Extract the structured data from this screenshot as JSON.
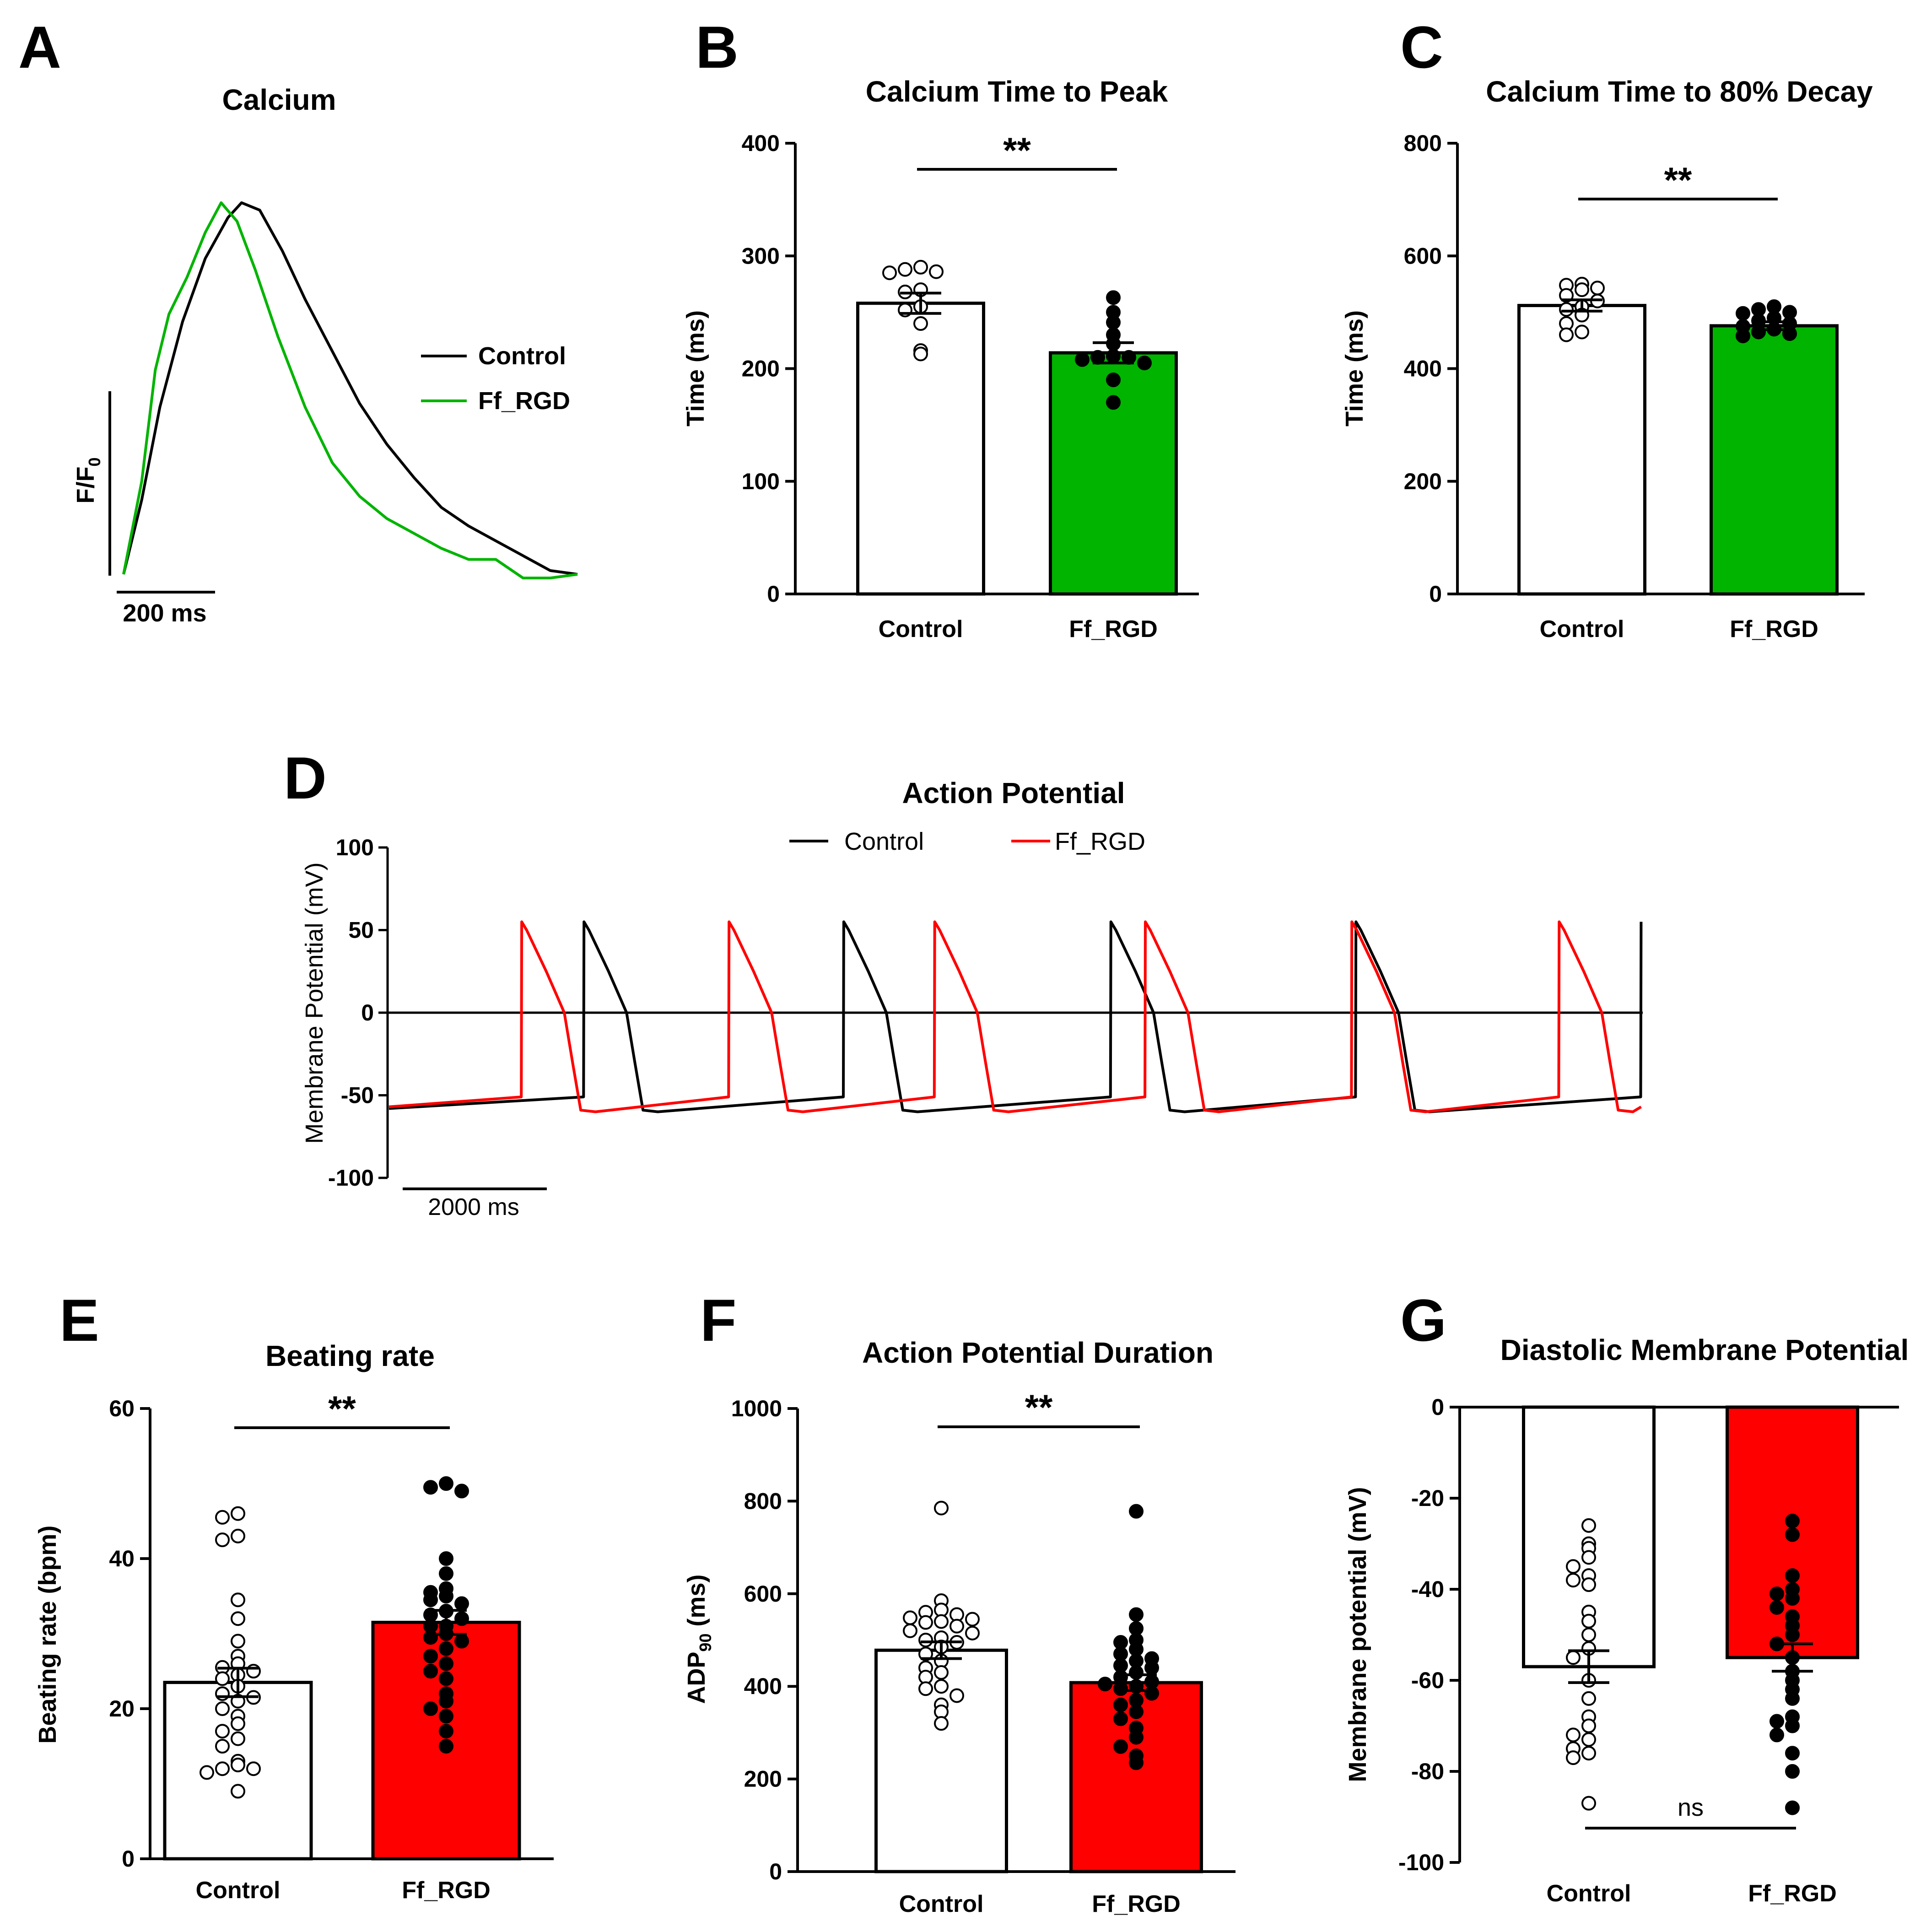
{
  "colors": {
    "control": "#000000",
    "green": "#00b400",
    "red": "#ff0000",
    "bar_control": "#ffffff"
  },
  "panel_letters": [
    "A",
    "B",
    "C",
    "D",
    "E",
    "F",
    "G"
  ],
  "chart_data": [
    {
      "id": "A",
      "type": "line",
      "title": "Calcium",
      "ylabel": "F/F0",
      "scale_bar": "200 ms",
      "legend": [
        {
          "name": "Control",
          "color": "#000000"
        },
        {
          "name": "Ff_RGD",
          "color": "#00b400"
        }
      ],
      "series": [
        {
          "name": "Control",
          "t_ms": [
            0,
            40,
            80,
            130,
            180,
            230,
            260,
            300,
            350,
            400,
            460,
            520,
            580,
            640,
            700,
            760,
            820,
            880,
            940,
            1000
          ],
          "y": [
            0,
            0.2,
            0.45,
            0.68,
            0.85,
            0.96,
            1.0,
            0.98,
            0.87,
            0.74,
            0.6,
            0.46,
            0.35,
            0.26,
            0.18,
            0.13,
            0.09,
            0.05,
            0.01,
            0.0
          ]
        },
        {
          "name": "Ff_RGD",
          "t_ms": [
            0,
            40,
            70,
            100,
            140,
            180,
            215,
            250,
            290,
            340,
            400,
            460,
            520,
            580,
            640,
            700,
            760,
            820,
            880,
            940,
            1000
          ],
          "y": [
            0,
            0.25,
            0.55,
            0.7,
            0.8,
            0.92,
            1.0,
            0.95,
            0.82,
            0.64,
            0.45,
            0.3,
            0.21,
            0.15,
            0.11,
            0.07,
            0.04,
            0.04,
            -0.01,
            -0.01,
            0.0
          ]
        }
      ]
    },
    {
      "id": "B",
      "type": "bar",
      "title": "Calcium Time to Peak",
      "ylabel": "Time (ms)",
      "ylim": [
        0,
        400
      ],
      "yticks": [
        "0",
        "100",
        "200",
        "300",
        "400"
      ],
      "categories": [
        "Control",
        "Ff_RGD"
      ],
      "values": [
        258,
        214
      ],
      "sem": [
        9,
        9
      ],
      "significance": "**",
      "bar_colors": [
        "#ffffff",
        "#00b400"
      ],
      "points": [
        [
          290,
          288,
          286,
          285,
          270,
          268,
          255,
          252,
          240,
          216,
          213
        ],
        [
          263,
          250,
          241,
          230,
          222,
          211,
          210,
          210,
          208,
          205,
          190,
          170
        ]
      ]
    },
    {
      "id": "C",
      "type": "bar",
      "title": "Calcium Time to 80% Decay",
      "ylabel": "Time  (ms)",
      "ylim": [
        0,
        800
      ],
      "yticks": [
        "0",
        "200",
        "400",
        "600",
        "800"
      ],
      "categories": [
        "Control",
        "Ff_RGD"
      ],
      "values": [
        512,
        476
      ],
      "sem": [
        10,
        7
      ],
      "significance": "**",
      "bar_colors": [
        "#ffffff",
        "#00b400"
      ],
      "points": [
        [
          550,
          548,
          543,
          540,
          530,
          520,
          510,
          505,
          495,
          480,
          465,
          460
        ],
        [
          510,
          505,
          500,
          498,
          490,
          485,
          480,
          475,
          470,
          465,
          462,
          458
        ]
      ]
    },
    {
      "id": "D",
      "type": "line",
      "title": "Action Potential",
      "ylabel": "Membrane Potential (mV)",
      "ylim": [
        -100,
        100
      ],
      "yticks": [
        "100",
        "50",
        "0",
        "-50",
        "-100"
      ],
      "scale_bar": "2000 ms",
      "legend": [
        {
          "name": "Control",
          "color": "#000000"
        },
        {
          "name": "Ff_RGD",
          "color": "#ff0000"
        }
      ],
      "series": [
        {
          "name": "Control",
          "spike_times_ms": [
            2380,
            5550,
            8810,
            11800,
            15280
          ],
          "rest_mv": -55,
          "peak_mv": 55
        },
        {
          "name": "Ff_RGD",
          "spike_times_ms": [
            1620,
            4150,
            6660,
            9230,
            11750,
            14280
          ],
          "rest_mv": -55,
          "peak_mv": 55
        }
      ]
    },
    {
      "id": "E",
      "type": "bar",
      "title": "Beating rate",
      "ylabel": "Beating rate (bpm)",
      "ylim": [
        0,
        60
      ],
      "yticks": [
        "0",
        "20",
        "40",
        "60"
      ],
      "categories": [
        "Control",
        "Ff_RGD"
      ],
      "values": [
        23.5,
        31.5
      ],
      "sem": [
        1.9,
        1.6
      ],
      "significance": "**",
      "bar_colors": [
        "#ffffff",
        "#ff0000"
      ],
      "points": [
        [
          46,
          45.5,
          43,
          42.5,
          34.5,
          32,
          29,
          27,
          26,
          25.5,
          25,
          24.5,
          24,
          23,
          22,
          21.5,
          21,
          20,
          19,
          18,
          17,
          16,
          15,
          13,
          12.5,
          12,
          12,
          11.5,
          9
        ],
        [
          50,
          49.5,
          49,
          40,
          38,
          36,
          35.5,
          35,
          34.5,
          34,
          33,
          32.5,
          32,
          31,
          31,
          30,
          29.5,
          29,
          28,
          27,
          26,
          25,
          24,
          22,
          21,
          20,
          19,
          17,
          15
        ]
      ]
    },
    {
      "id": "F",
      "type": "bar",
      "title": "Action Potential Duration",
      "ylabel": "ADP90 (ms)",
      "ylim": [
        0,
        1000
      ],
      "yticks": [
        "0",
        "200",
        "400",
        "600",
        "800",
        "1000"
      ],
      "categories": [
        "Control",
        "Ff_RGD"
      ],
      "values": [
        478,
        408
      ],
      "sem": [
        18,
        17
      ],
      "significance": "**",
      "bar_colors": [
        "#ffffff",
        "#ff0000"
      ],
      "points": [
        [
          785,
          585,
          565,
          560,
          555,
          548,
          545,
          540,
          538,
          530,
          520,
          515,
          505,
          500,
          495,
          485,
          470,
          455,
          440,
          430,
          420,
          400,
          395,
          380,
          360,
          345,
          320
        ],
        [
          778,
          555,
          525,
          500,
          495,
          480,
          470,
          460,
          455,
          445,
          440,
          430,
          420,
          410,
          405,
          400,
          395,
          385,
          370,
          360,
          345,
          330,
          310,
          290,
          270,
          250,
          235
        ]
      ]
    },
    {
      "id": "G",
      "type": "bar",
      "title": "Diastolic Membrane Potential",
      "ylabel": "Membrane potential (mV)",
      "ylim": [
        -100,
        0
      ],
      "yticks": [
        "0",
        "-20",
        "-40",
        "-60",
        "-80",
        "-100"
      ],
      "categories": [
        "Control",
        "Ff_RGD"
      ],
      "values": [
        -57,
        -55
      ],
      "sem": [
        3.5,
        3
      ],
      "significance": "ns",
      "bar_colors": [
        "#ffffff",
        "#ff0000"
      ],
      "points": [
        [
          -26,
          -30,
          -31,
          -33,
          -35,
          -37,
          -38,
          -39,
          -45,
          -47,
          -50,
          -53,
          -55,
          -60,
          -64,
          -68,
          -70,
          -72,
          -73,
          -75,
          -76,
          -77,
          -87
        ],
        [
          -25,
          -28,
          -37,
          -40,
          -41,
          -42,
          -44,
          -46,
          -48,
          -50,
          -52,
          -55,
          -58,
          -60,
          -62,
          -64,
          -68,
          -69,
          -70,
          -72,
          -76,
          -80,
          -88
        ]
      ]
    }
  ]
}
